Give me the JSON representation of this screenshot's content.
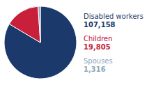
{
  "chart_data": {
    "type": "pie",
    "categories": [
      "Disabled workers",
      "Children",
      "Spouses"
    ],
    "values": [
      107158,
      19805,
      1316
    ],
    "value_labels": [
      "107,158",
      "19,805",
      "1,316"
    ],
    "colors": [
      "#1b3a6b",
      "#c8203a",
      "#8da8bb"
    ],
    "data_labels": true
  }
}
